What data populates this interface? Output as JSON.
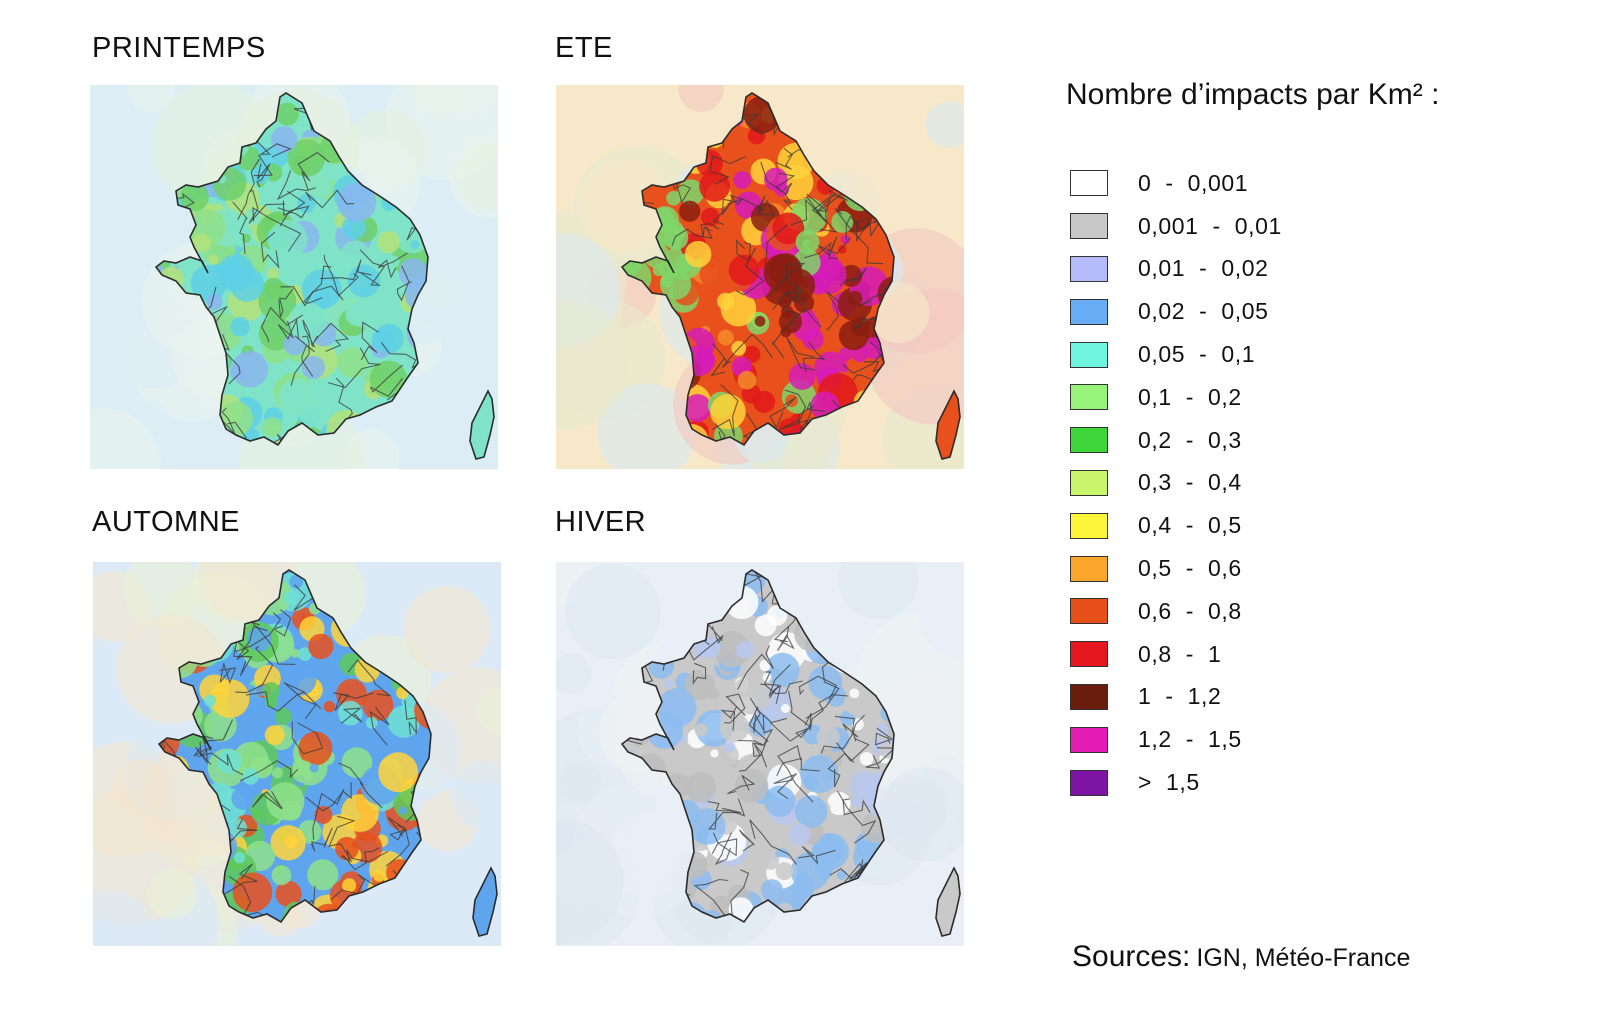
{
  "maps": [
    {
      "id": "printemps",
      "title": "PRINTEMPS",
      "colors": [
        "#7fe3c8",
        "#8fe08a",
        "#6fd06a",
        "#5ed0e6",
        "#b4e27a",
        "#8ab6f0"
      ]
    },
    {
      "id": "ete",
      "title": "ETE",
      "colors": [
        "#e8501c",
        "#e11a1a",
        "#f38a2a",
        "#ffd23a",
        "#8a1f10",
        "#d61cb8",
        "#7fd66a"
      ]
    },
    {
      "id": "automne",
      "title": "AUTOMNE",
      "colors": [
        "#5fa5ee",
        "#6fe0d4",
        "#8fe08a",
        "#5ec95a",
        "#e8501c",
        "#ffd23a"
      ]
    },
    {
      "id": "hiver",
      "title": "HIVER",
      "colors": [
        "#c9c9c9",
        "#bdbdbd",
        "#ffffff",
        "#8cbcf0",
        "#b8c8ee"
      ]
    }
  ],
  "legend": {
    "title": "Nombre d’impacts par Km² :",
    "items": [
      {
        "label": "0  -  0,001",
        "color": "#ffffff"
      },
      {
        "label": "0,001  -  0,01",
        "color": "#c8c8c8"
      },
      {
        "label": "0,01  -  0,02",
        "color": "#b6bcfb"
      },
      {
        "label": "0,02  -  0,05",
        "color": "#67adf5"
      },
      {
        "label": "0,05  -  0,1",
        "color": "#6ff5e0"
      },
      {
        "label": "0,1  -  0,2",
        "color": "#98f37a"
      },
      {
        "label": "0,2  -  0,3",
        "color": "#3fd63a"
      },
      {
        "label": "0,3  -  0,4",
        "color": "#c8f56a"
      },
      {
        "label": "0,4  -  0,5",
        "color": "#fdf53a"
      },
      {
        "label": "0,5  -  0,6",
        "color": "#fba72b"
      },
      {
        "label": "0,6  -  0,8",
        "color": "#e8501a"
      },
      {
        "label": "0,8  -  1",
        "color": "#e6171f"
      },
      {
        "label": "1  -  1,2",
        "color": "#6a1d0c"
      },
      {
        "label": "1,2  -  1,5",
        "color": "#e41eb4"
      },
      {
        "label": ">  1,5",
        "color": "#7d14a6"
      }
    ]
  },
  "sources": {
    "label": "Sources:",
    "value": "IGN, Météo-France"
  }
}
